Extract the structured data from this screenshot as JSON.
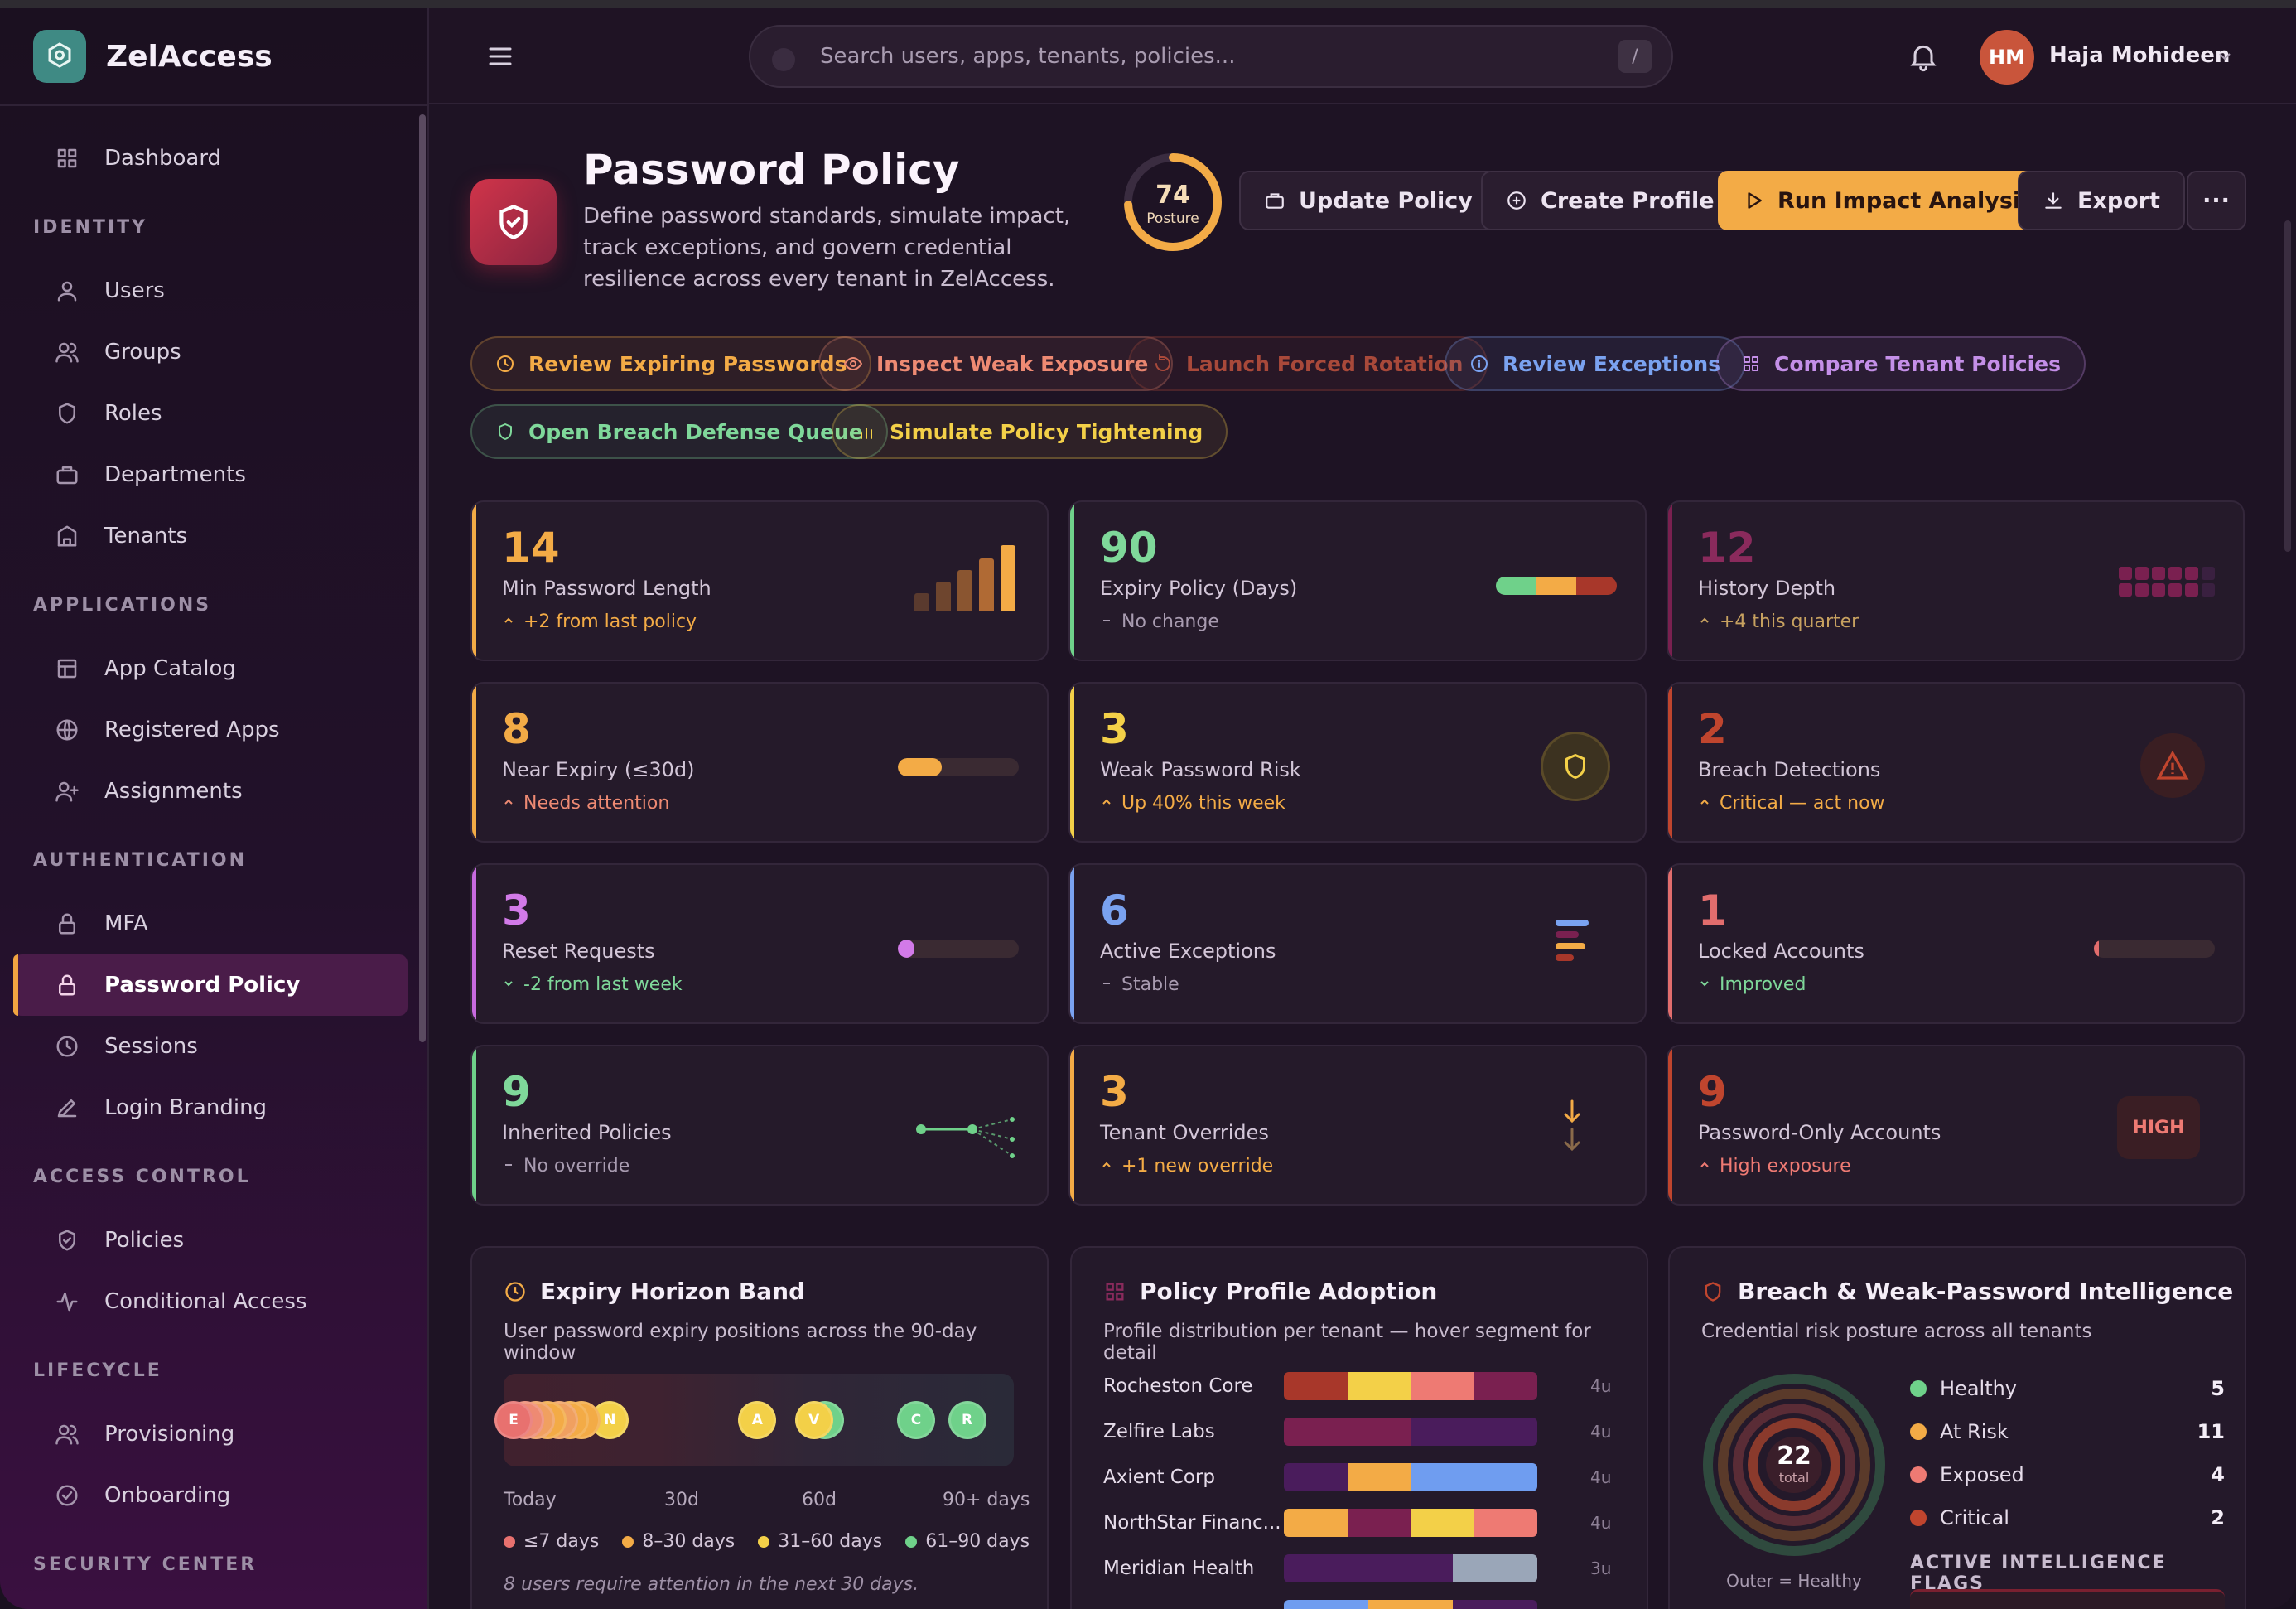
{
  "brand": {
    "name": "ZelAccess"
  },
  "sidebar": {
    "items": [
      {
        "type": "item",
        "label": "Dashboard",
        "icon": "grid-icon"
      },
      {
        "type": "section",
        "label": "IDENTITY"
      },
      {
        "type": "item",
        "label": "Users",
        "icon": "user-icon"
      },
      {
        "type": "item",
        "label": "Groups",
        "icon": "users-icon"
      },
      {
        "type": "item",
        "label": "Roles",
        "icon": "shield-icon"
      },
      {
        "type": "item",
        "label": "Departments",
        "icon": "briefcase-icon"
      },
      {
        "type": "item",
        "label": "Tenants",
        "icon": "building-icon"
      },
      {
        "type": "section",
        "label": "APPLICATIONS"
      },
      {
        "type": "item",
        "label": "App Catalog",
        "icon": "catalog-icon"
      },
      {
        "type": "item",
        "label": "Registered Apps",
        "icon": "globe-icon"
      },
      {
        "type": "item",
        "label": "Assignments",
        "icon": "user-plus-icon"
      },
      {
        "type": "section",
        "label": "AUTHENTICATION"
      },
      {
        "type": "item",
        "label": "MFA",
        "icon": "lock-icon"
      },
      {
        "type": "item",
        "label": "Password Policy",
        "icon": "lock-icon",
        "active": true
      },
      {
        "type": "item",
        "label": "Sessions",
        "icon": "clock-icon"
      },
      {
        "type": "item",
        "label": "Login Branding",
        "icon": "pen-icon"
      },
      {
        "type": "section",
        "label": "ACCESS CONTROL"
      },
      {
        "type": "item",
        "label": "Policies",
        "icon": "shield-check-icon"
      },
      {
        "type": "item",
        "label": "Conditional Access",
        "icon": "activity-icon"
      },
      {
        "type": "section",
        "label": "LIFECYCLE"
      },
      {
        "type": "item",
        "label": "Provisioning",
        "icon": "users-icon"
      },
      {
        "type": "item",
        "label": "Onboarding",
        "icon": "check-circle-icon"
      },
      {
        "type": "section",
        "label": "SECURITY CENTER"
      }
    ]
  },
  "topbar": {
    "search_placeholder": "Search users, apps, tenants, policies...",
    "search_shortcut": "/",
    "user_initials": "HM",
    "user_name": "Haja Mohideen"
  },
  "header": {
    "title": "Password Policy",
    "description": "Define password standards, simulate impact, track exceptions, and govern credential resilience across every tenant in ZelAccess.",
    "posture_value": "74",
    "posture_label": "Posture",
    "posture_fraction": 0.74,
    "buttons": {
      "update": "Update Policy",
      "create": "Create Profile",
      "run": "Run Impact Analysis",
      "export": "Export",
      "more": "···"
    }
  },
  "quick_actions": [
    {
      "label": "Review Expiring Passwords",
      "color": "#f3ab46",
      "icon": "clock-icon"
    },
    {
      "label": "Inspect Weak Exposure",
      "color": "#ee8a73",
      "icon": "eye-icon"
    },
    {
      "label": "Launch Forced Rotation",
      "color": "#a8493a",
      "icon": "rotate-icon"
    },
    {
      "label": "Review Exceptions",
      "color": "#7aa2f0",
      "icon": "info-icon"
    },
    {
      "label": "Compare Tenant Policies",
      "color": "#c48fe8",
      "icon": "grid-icon"
    },
    {
      "label": "Open Breach Defense Queue",
      "color": "#7fd89a",
      "icon": "shield-icon"
    },
    {
      "label": "Simulate Policy Tightening",
      "color": "#f3d048",
      "icon": "bar-chart-icon"
    }
  ],
  "stats": [
    {
      "value": "14",
      "label": "Min Password Length",
      "sub": "+2 from last policy",
      "trend": "up",
      "accent": "#f3ab46",
      "value_color": "#f3ab46",
      "sub_color": "#f3ab46",
      "visual": "bars"
    },
    {
      "value": "90",
      "label": "Expiry Policy (Days)",
      "sub": "No change",
      "trend": "flat",
      "accent": "#6fd18a",
      "value_color": "#7fd89a",
      "sub_color": "#a89bb0",
      "visual": "tricolor"
    },
    {
      "value": "12",
      "label": "History Depth",
      "sub": "+4 this quarter",
      "trend": "up",
      "accent": "#7a2050",
      "value_color": "#8a2a5c",
      "sub_color": "#c7a160",
      "visual": "dots"
    },
    {
      "value": "8",
      "label": "Near Expiry (≤30d)",
      "sub": "Needs attention",
      "trend": "up",
      "accent": "#f3ab46",
      "value_color": "#f3ab46",
      "sub_color": "#ee8a73",
      "visual": "progress",
      "fraction": 0.36,
      "fill": "#f3ab46"
    },
    {
      "value": "3",
      "label": "Weak Password Risk",
      "sub": "Up 40% this week",
      "trend": "up",
      "accent": "#f3d048",
      "value_color": "#f3d048",
      "sub_color": "#f3ab46",
      "visual": "shield"
    },
    {
      "value": "2",
      "label": "Breach Detections",
      "sub": "Critical — act now",
      "trend": "up",
      "accent": "#c0452e",
      "value_color": "#c0452e",
      "sub_color": "#f3ab46",
      "visual": "warning"
    },
    {
      "value": "3",
      "label": "Reset Requests",
      "sub": "-2 from last week",
      "trend": "down",
      "accent": "#c86ae0",
      "value_color": "#d27ae8",
      "sub_color": "#7fd89a",
      "visual": "progress",
      "fraction": 0.14,
      "fill": "#d27ae8"
    },
    {
      "value": "6",
      "label": "Active Exceptions",
      "sub": "Stable",
      "trend": "flat",
      "accent": "#7aa2f0",
      "value_color": "#7aa2f0",
      "sub_color": "#a89bb0",
      "visual": "lines"
    },
    {
      "value": "1",
      "label": "Locked Accounts",
      "sub": "Improved",
      "trend": "down",
      "accent": "#e26d6d",
      "value_color": "#e26d6d",
      "sub_color": "#7fd89a",
      "visual": "progress",
      "fraction": 0.04,
      "fill": "#e26d6d"
    },
    {
      "value": "9",
      "label": "Inherited Policies",
      "sub": "No override",
      "trend": "flat",
      "accent": "#6fd18a",
      "value_color": "#7fd89a",
      "sub_color": "#a89bb0",
      "visual": "tree"
    },
    {
      "value": "3",
      "label": "Tenant Overrides",
      "sub": "+1 new override",
      "trend": "up",
      "accent": "#f3ab46",
      "value_color": "#f3ab46",
      "sub_color": "#f3ab46",
      "visual": "arrows"
    },
    {
      "value": "9",
      "label": "Password-Only Accounts",
      "sub": "High exposure",
      "trend": "up",
      "accent": "#c0452e",
      "value_color": "#c0452e",
      "sub_color": "#ee7a73",
      "visual": "badge",
      "badge": "HIGH"
    }
  ],
  "expiry_panel": {
    "title": "Expiry Horizon Band",
    "description": "User password expiry positions across the 90-day window",
    "pins": [
      {
        "initial": "E",
        "day": 0,
        "color": "#e8716f"
      },
      {
        "initial": "",
        "day": 2,
        "color": "#ee8a73"
      },
      {
        "initial": "",
        "day": 4,
        "color": "#f0a060"
      },
      {
        "initial": "D",
        "day": 6,
        "color": "#f3ab46"
      },
      {
        "initial": "",
        "day": 8,
        "color": "#f0a060"
      },
      {
        "initial": "K",
        "day": 10,
        "color": "#f3ab46"
      },
      {
        "initial": "",
        "day": 12,
        "color": "#f3ab46"
      },
      {
        "initial": "N",
        "day": 17,
        "color": "#f3d048"
      },
      {
        "initial": "A",
        "day": 43,
        "color": "#f3d048"
      },
      {
        "initial": "V",
        "day": 53,
        "color": "#f3d048"
      },
      {
        "initial": "M",
        "day": 55,
        "color": "#6fd18a"
      },
      {
        "initial": "C",
        "day": 71,
        "color": "#6fd18a"
      },
      {
        "initial": "R",
        "day": 80,
        "color": "#6fd18a"
      }
    ],
    "axis": [
      "Today",
      "30d",
      "60d",
      "90+ days"
    ],
    "legend": [
      {
        "label": "≤7 days",
        "color": "#e8716f"
      },
      {
        "label": "8–30 days",
        "color": "#f3ab46"
      },
      {
        "label": "31–60 days",
        "color": "#f3d048"
      },
      {
        "label": "61–90 days",
        "color": "#6fd18a"
      }
    ],
    "note": "8 users require attention in the next 30 days."
  },
  "adoption_panel": {
    "title": "Policy Profile Adoption",
    "description": "Profile distribution per tenant — hover segment for detail",
    "rows": [
      {
        "name": "Rocheston Core",
        "count": "4u",
        "segments": [
          {
            "w": 1,
            "c": "#a8372a"
          },
          {
            "w": 1,
            "c": "#f3d048"
          },
          {
            "w": 1,
            "c": "#ee7a73"
          },
          {
            "w": 1,
            "c": "#7a2050"
          }
        ]
      },
      {
        "name": "Zelfire Labs",
        "count": "4u",
        "segments": [
          {
            "w": 2,
            "c": "#7a2050"
          },
          {
            "w": 2,
            "c": "#4a1c5c"
          }
        ]
      },
      {
        "name": "Axient Corp",
        "count": "4u",
        "segments": [
          {
            "w": 1,
            "c": "#4a1c5c"
          },
          {
            "w": 1,
            "c": "#f3ab46"
          },
          {
            "w": 2,
            "c": "#6f9df0"
          }
        ]
      },
      {
        "name": "NorthStar Financ...",
        "count": "4u",
        "segments": [
          {
            "w": 1,
            "c": "#f3ab46"
          },
          {
            "w": 1,
            "c": "#7a2050"
          },
          {
            "w": 1,
            "c": "#f3d048"
          },
          {
            "w": 1,
            "c": "#ee7a73"
          }
        ]
      },
      {
        "name": "Meridian Health",
        "count": "3u",
        "segments": [
          {
            "w": 2,
            "c": "#4a1c5c"
          },
          {
            "w": 1,
            "c": "#9aa6b8"
          }
        ]
      },
      {
        "name": "",
        "count": "",
        "segments": [
          {
            "w": 1,
            "c": "#6f9df0"
          },
          {
            "w": 1,
            "c": "#f3ab46"
          },
          {
            "w": 1,
            "c": "#4a1c5c"
          }
        ]
      }
    ]
  },
  "breach_panel": {
    "title": "Breach & Weak-Password Intelligence",
    "description": "Credential risk posture across all tenants",
    "total": "22",
    "total_label": "total",
    "ring_note": "Outer = Healthy",
    "legend": [
      {
        "label": "Healthy",
        "value": "5",
        "color": "#6fd18a"
      },
      {
        "label": "At Risk",
        "value": "11",
        "color": "#f3ab46"
      },
      {
        "label": "Exposed",
        "value": "4",
        "color": "#ee7a73"
      },
      {
        "label": "Critical",
        "value": "2",
        "color": "#c0452e"
      }
    ],
    "flags_title": "ACTIVE INTELLIGENCE FLAGS"
  }
}
